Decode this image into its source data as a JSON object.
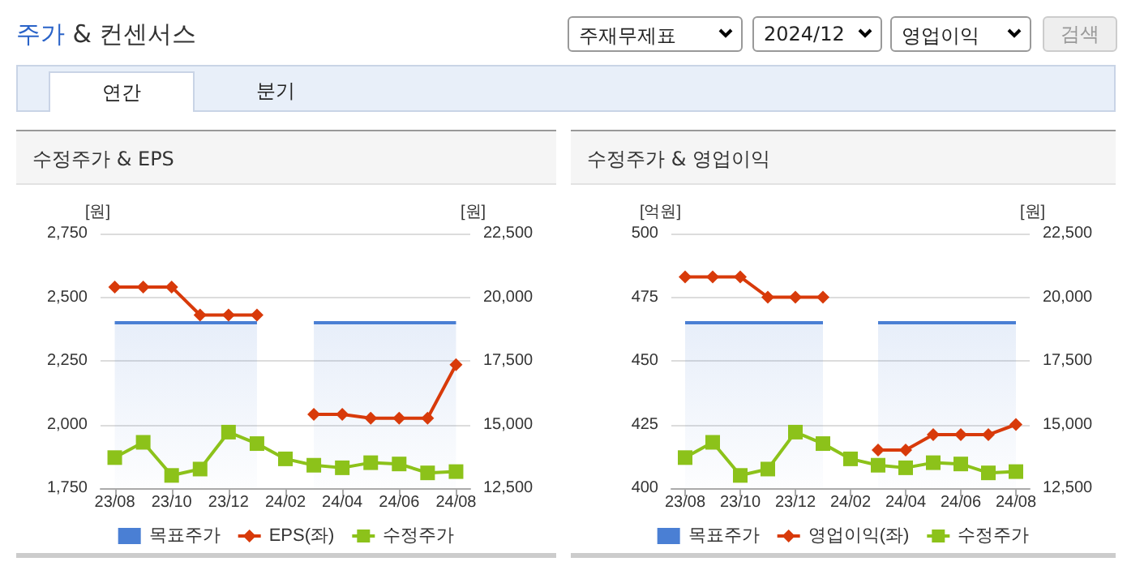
{
  "chart_data": [
    {
      "type": "line",
      "title": "수정주가 & EPS",
      "annotations": [
        "주가 & 컨센서스",
        "주재무제표",
        "2024/12",
        "영업이익",
        "검색",
        "연간",
        "분기"
      ],
      "ylabel": "[원]",
      "y2label": "[원]",
      "categories": [
        "23/08",
        null,
        "23/10",
        null,
        "23/12",
        null,
        "24/02",
        null,
        "24/04",
        null,
        "24/06",
        null,
        "24/08"
      ],
      "series": [
        {
          "name": "목표주가",
          "type": "area",
          "axis": "y2",
          "color": "#4a7fd4",
          "marker": "none",
          "values": [
            19000,
            19000,
            19000,
            19000,
            19000,
            19000,
            null,
            19000,
            19000,
            19000,
            19000,
            19000,
            19000
          ]
        },
        {
          "name": "EPS(좌)",
          "type": "line",
          "color": "#d83a0a",
          "marker": "diamond",
          "values": [
            2540,
            2540,
            2540,
            2430,
            2430,
            2430,
            null,
            2040,
            2040,
            2025,
            2025,
            2025,
            2235
          ]
        },
        {
          "name": "수정주가",
          "type": "line",
          "axis": "y2",
          "color": "#8cc21a",
          "marker": "square",
          "values": [
            13700,
            14300,
            13000,
            13250,
            14700,
            14250,
            13650,
            13400,
            13300,
            13500,
            13450,
            13100,
            13150
          ]
        }
      ],
      "ylim": [
        1750,
        2750
      ],
      "yticks": [
        {
          "value": 1750,
          "label": "1,750"
        },
        {
          "value": 2000,
          "label": "2,000"
        },
        {
          "value": 2250,
          "label": "2,250"
        },
        {
          "value": 2500,
          "label": "2,500"
        },
        {
          "value": 2750,
          "label": "2,750"
        }
      ],
      "y2lim": [
        12500,
        22500
      ],
      "y2ticks": [
        {
          "value": 12500,
          "label": "12,500"
        },
        {
          "value": 15000,
          "label": "15,000"
        },
        {
          "value": 17500,
          "label": "17,500"
        },
        {
          "value": 20000,
          "label": "20,000"
        },
        {
          "value": 22500,
          "label": "22,500"
        }
      ],
      "grid": "y",
      "legend": "bottom"
    },
    {
      "type": "line",
      "title": "수정주가 & 영업이익",
      "ylabel": "[억원]",
      "y2label": "[원]",
      "categories": [
        "23/08",
        null,
        "23/10",
        null,
        "23/12",
        null,
        "24/02",
        null,
        "24/04",
        null,
        "24/06",
        null,
        "24/08"
      ],
      "series": [
        {
          "name": "목표주가",
          "type": "area",
          "axis": "y2",
          "color": "#4a7fd4",
          "marker": "none",
          "values": [
            19000,
            19000,
            19000,
            19000,
            19000,
            19000,
            null,
            19000,
            19000,
            19000,
            19000,
            19000,
            19000
          ]
        },
        {
          "name": "영업이익(좌)",
          "type": "line",
          "color": "#d83a0a",
          "marker": "diamond",
          "values": [
            483,
            483,
            483,
            475,
            475,
            475,
            null,
            415,
            415,
            421,
            421,
            421,
            425
          ]
        },
        {
          "name": "수정주가",
          "type": "line",
          "axis": "y2",
          "color": "#8cc21a",
          "marker": "square",
          "values": [
            13700,
            14300,
            13000,
            13250,
            14700,
            14250,
            13650,
            13400,
            13300,
            13500,
            13450,
            13100,
            13150
          ]
        }
      ],
      "ylim": [
        400,
        500
      ],
      "yticks": [
        400,
        425,
        450,
        475,
        500
      ],
      "y2lim": [
        12500,
        22500
      ],
      "y2ticks": [
        {
          "value": 12500,
          "label": "12,500"
        },
        {
          "value": 15000,
          "label": "15,000"
        },
        {
          "value": 17500,
          "label": "17,500"
        },
        {
          "value": 20000,
          "label": "20,000"
        },
        {
          "value": 22500,
          "label": "22,500"
        }
      ],
      "grid": "y",
      "legend": "bottom"
    }
  ]
}
